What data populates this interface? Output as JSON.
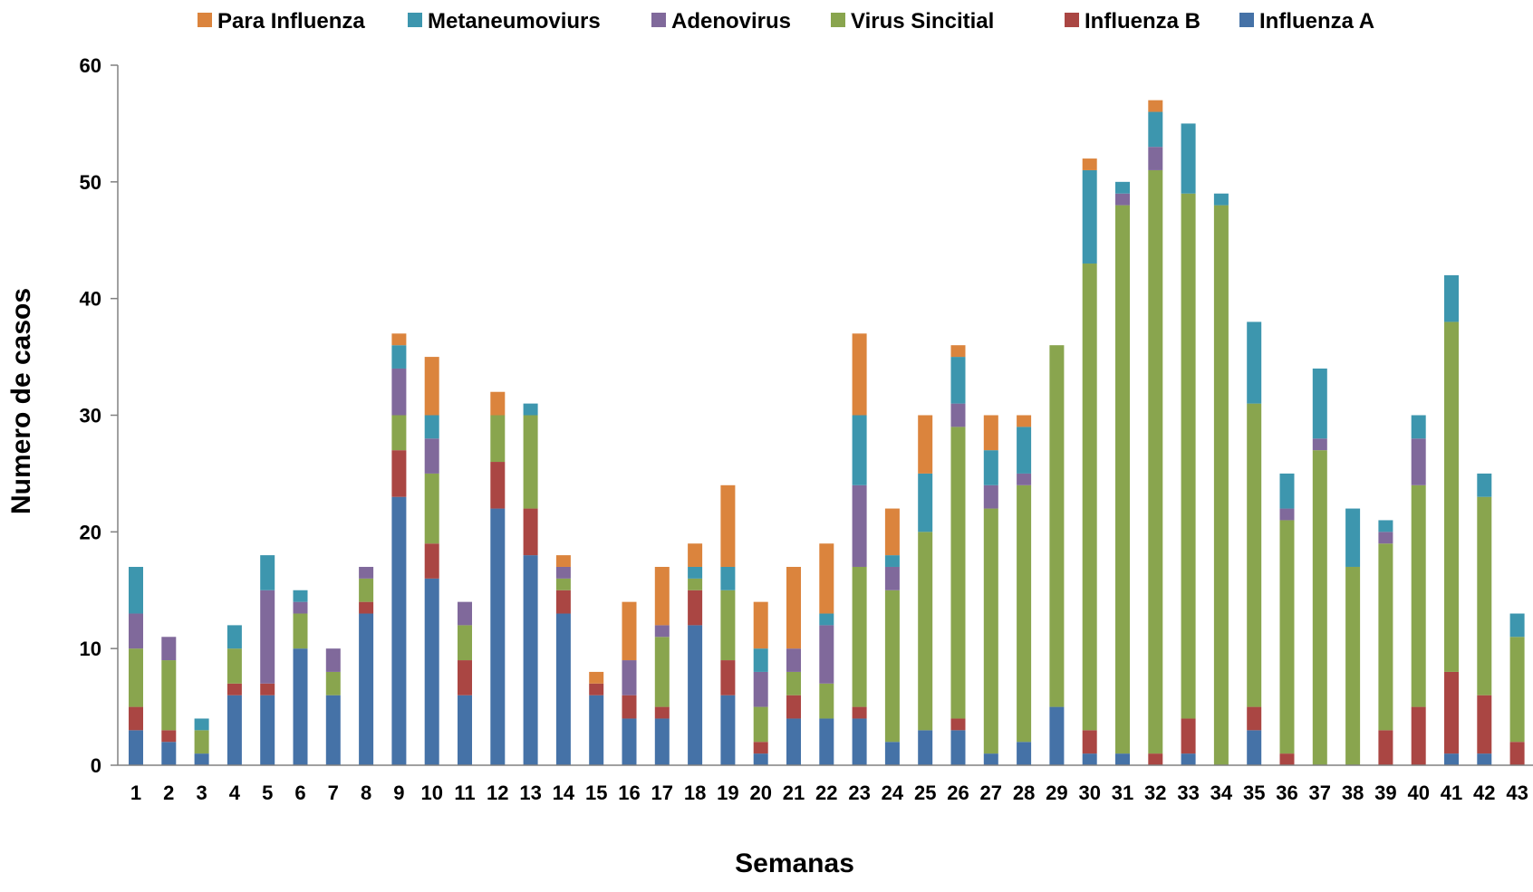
{
  "chart_data": {
    "type": "bar",
    "stacked": true,
    "xlabel": "Semanas",
    "ylabel": "Numero de casos",
    "ylim": [
      0,
      60
    ],
    "yticks": [
      0,
      10,
      20,
      30,
      40,
      50,
      60
    ],
    "grid": false,
    "legend_position": "top",
    "categories": [
      "1",
      "2",
      "3",
      "4",
      "5",
      "6",
      "7",
      "8",
      "9",
      "10",
      "11",
      "12",
      "13",
      "14",
      "15",
      "16",
      "17",
      "18",
      "19",
      "20",
      "21",
      "22",
      "23",
      "24",
      "25",
      "26",
      "27",
      "28",
      "29",
      "30",
      "31",
      "32",
      "33",
      "34",
      "35",
      "36",
      "37",
      "38",
      "39",
      "40",
      "41",
      "42",
      "43"
    ],
    "series": [
      {
        "name": "Influenza A",
        "color": "#4572A7",
        "values": [
          3,
          2,
          1,
          6,
          6,
          10,
          6,
          13,
          23,
          16,
          6,
          22,
          18,
          13,
          6,
          4,
          4,
          12,
          6,
          1,
          4,
          4,
          4,
          2,
          3,
          3,
          1,
          2,
          5,
          1,
          1,
          0,
          1,
          0,
          3,
          0,
          0,
          0,
          0,
          0,
          1,
          1,
          0
        ]
      },
      {
        "name": "Influenza B",
        "color": "#AA4643",
        "values": [
          2,
          1,
          0,
          1,
          1,
          0,
          0,
          1,
          4,
          3,
          3,
          4,
          4,
          2,
          1,
          2,
          1,
          3,
          3,
          1,
          2,
          0,
          1,
          0,
          0,
          1,
          0,
          0,
          0,
          2,
          0,
          1,
          3,
          0,
          2,
          1,
          0,
          0,
          3,
          5,
          7,
          5,
          2
        ]
      },
      {
        "name": "Virus Sincitial",
        "color": "#89A54E",
        "values": [
          5,
          6,
          2,
          3,
          0,
          3,
          2,
          2,
          3,
          6,
          3,
          4,
          8,
          1,
          0,
          0,
          6,
          1,
          6,
          3,
          2,
          3,
          12,
          13,
          17,
          25,
          21,
          22,
          31,
          40,
          47,
          50,
          45,
          48,
          26,
          20,
          27,
          17,
          16,
          19,
          30,
          17,
          9
        ]
      },
      {
        "name": "Adenovirus",
        "color": "#80699B",
        "values": [
          3,
          2,
          0,
          0,
          8,
          1,
          2,
          1,
          4,
          3,
          2,
          0,
          0,
          1,
          0,
          3,
          1,
          0,
          0,
          3,
          2,
          5,
          7,
          2,
          0,
          2,
          2,
          1,
          0,
          0,
          1,
          2,
          0,
          0,
          0,
          1,
          1,
          0,
          1,
          4,
          0,
          0,
          0
        ]
      },
      {
        "name": "Metaneumoviurs",
        "color": "#3D96AE",
        "values": [
          4,
          0,
          1,
          2,
          3,
          1,
          0,
          0,
          2,
          2,
          0,
          0,
          1,
          0,
          0,
          0,
          0,
          1,
          2,
          2,
          0,
          1,
          6,
          1,
          5,
          4,
          3,
          4,
          0,
          8,
          1,
          3,
          6,
          1,
          7,
          3,
          6,
          5,
          1,
          2,
          4,
          2,
          2
        ]
      },
      {
        "name": "Para Influenza",
        "color": "#DB843D",
        "values": [
          0,
          0,
          0,
          0,
          0,
          0,
          0,
          0,
          1,
          5,
          0,
          2,
          0,
          1,
          1,
          5,
          5,
          2,
          7,
          4,
          7,
          6,
          7,
          4,
          5,
          1,
          3,
          1,
          0,
          1,
          0,
          1,
          0,
          0,
          0,
          0,
          0,
          0,
          0,
          0,
          0,
          0,
          0
        ]
      }
    ],
    "legend_order": [
      "Para Influenza",
      "Metaneumoviurs",
      "Adenovirus",
      "Virus Sincitial",
      "Influenza B",
      "Influenza A"
    ]
  }
}
